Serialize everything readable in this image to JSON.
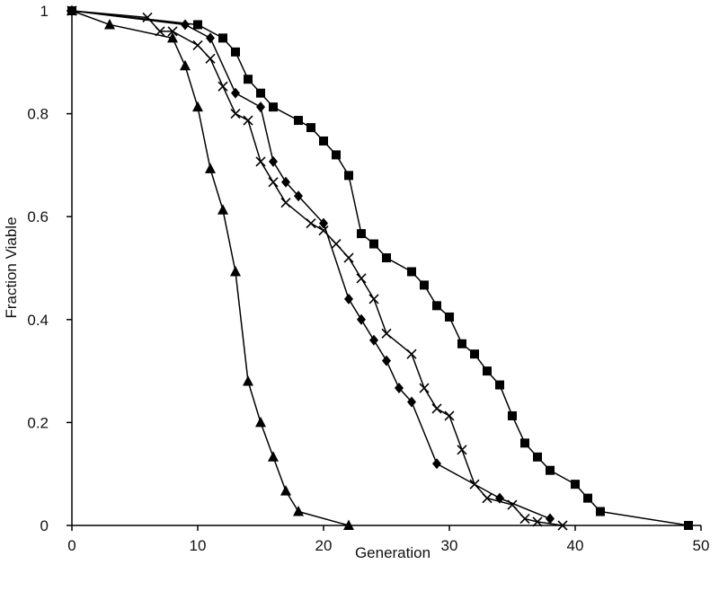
{
  "chart_data": {
    "type": "line",
    "title": "",
    "xlabel": "Generation",
    "ylabel": "Fraction Viable",
    "xlim": [
      0,
      50
    ],
    "ylim": [
      0,
      1
    ],
    "x_ticks": [
      0,
      10,
      20,
      30,
      40,
      50
    ],
    "y_ticks": [
      0,
      0.2,
      0.4,
      0.6,
      0.8,
      1
    ],
    "y_tick_labels": [
      "0",
      "0.2",
      "0.4",
      "0.6",
      "0.8",
      "1"
    ],
    "grid": false,
    "legend": "none",
    "series": [
      {
        "marker": "square",
        "color": "#000000",
        "x": [
          0,
          10,
          12,
          13,
          14,
          15,
          16,
          18,
          19,
          20,
          21,
          22,
          23,
          24,
          25,
          27,
          28,
          29,
          30,
          31,
          32,
          33,
          34,
          35,
          36,
          37,
          38,
          40,
          41,
          42,
          49
        ],
        "y": [
          1,
          0.973,
          0.947,
          0.92,
          0.867,
          0.84,
          0.813,
          0.787,
          0.773,
          0.747,
          0.72,
          0.68,
          0.567,
          0.547,
          0.52,
          0.493,
          0.467,
          0.427,
          0.405,
          0.353,
          0.333,
          0.3,
          0.273,
          0.213,
          0.16,
          0.133,
          0.107,
          0.08,
          0.053,
          0.027,
          0
        ]
      },
      {
        "marker": "diamond",
        "color": "#000000",
        "x": [
          0,
          9,
          11,
          13,
          15,
          16,
          17,
          18,
          20,
          22,
          23,
          24,
          25,
          26,
          27,
          29,
          34,
          38
        ],
        "y": [
          1,
          0.973,
          0.947,
          0.84,
          0.813,
          0.707,
          0.667,
          0.64,
          0.587,
          0.44,
          0.4,
          0.36,
          0.32,
          0.267,
          0.24,
          0.12,
          0.053,
          0.013
        ]
      },
      {
        "marker": "x",
        "color": "#000000",
        "x": [
          0,
          6,
          7,
          8,
          10,
          11,
          12,
          13,
          14,
          15,
          16,
          17,
          19,
          20,
          21,
          22,
          23,
          24,
          25,
          27,
          28,
          29,
          30,
          31,
          32,
          33,
          35,
          36,
          37,
          39
        ],
        "y": [
          1,
          0.987,
          0.96,
          0.96,
          0.933,
          0.907,
          0.853,
          0.8,
          0.787,
          0.707,
          0.667,
          0.627,
          0.587,
          0.573,
          0.547,
          0.52,
          0.48,
          0.44,
          0.373,
          0.333,
          0.267,
          0.227,
          0.213,
          0.147,
          0.08,
          0.053,
          0.04,
          0.013,
          0.007,
          0
        ]
      },
      {
        "marker": "triangle",
        "color": "#000000",
        "x": [
          0,
          3,
          8,
          9,
          10,
          11,
          12,
          13,
          14,
          15,
          16,
          17,
          18,
          22
        ],
        "y": [
          1,
          0.973,
          0.947,
          0.893,
          0.813,
          0.693,
          0.613,
          0.493,
          0.28,
          0.2,
          0.133,
          0.067,
          0.027,
          0
        ]
      }
    ]
  }
}
